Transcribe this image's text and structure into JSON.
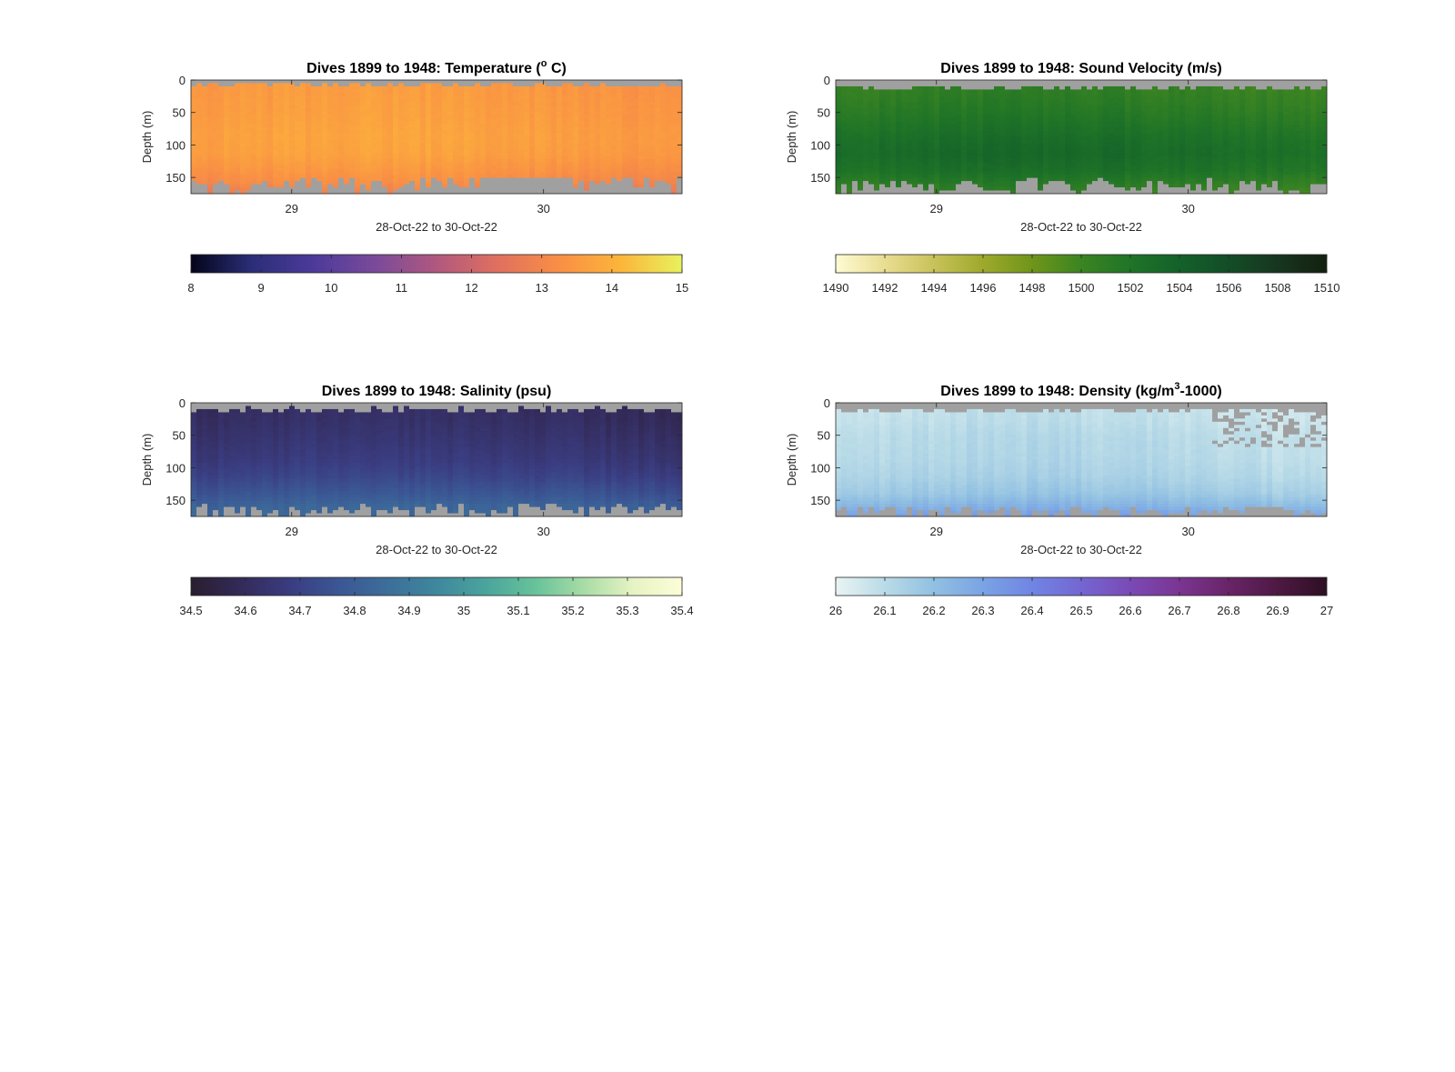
{
  "chart_data": [
    {
      "type": "heatmap",
      "title_main": "Dives 1899 to 1948: Temperature (",
      "title_sup": "o",
      "title_end": " C)",
      "xlabel": "28-Oct-22 to 30-Oct-22",
      "ylabel": "Depth (m)",
      "x_ticks": [
        "29",
        "30"
      ],
      "x_tick_values": [
        29,
        30
      ],
      "xlim": [
        28.6,
        30.55
      ],
      "y_ticks": [
        "0",
        "50",
        "100",
        "150"
      ],
      "y_tick_values": [
        0,
        50,
        100,
        150
      ],
      "ylim": [
        0,
        175
      ],
      "colorbar": {
        "ticks": [
          "8",
          "9",
          "10",
          "11",
          "12",
          "13",
          "14",
          "15"
        ],
        "range": [
          8,
          15
        ],
        "stops": [
          "#03051a",
          "#2b2e78",
          "#4c3a9a",
          "#7a4a9a",
          "#b0587f",
          "#e0705f",
          "#f98f45",
          "#fcb53a",
          "#e8f25c"
        ]
      },
      "missing_color": "#a0a0a0",
      "profile": {
        "base": [
          13.4,
          13.45,
          13.5,
          13.6,
          13.55,
          13.3,
          13.1,
          12.7
        ],
        "depth_fracs": [
          0.0,
          0.15,
          0.3,
          0.5,
          0.65,
          0.8,
          0.9,
          1.0
        ]
      },
      "surface_missing_m": [
        5,
        10
      ],
      "bottom_missing_m": [
        150,
        175
      ]
    },
    {
      "type": "heatmap",
      "title_main": "Dives 1899 to 1948: Sound Velocity (m/s)",
      "title_sup": "",
      "title_end": "",
      "xlabel": "28-Oct-22 to 30-Oct-22",
      "ylabel": "Depth (m)",
      "x_ticks": [
        "29",
        "30"
      ],
      "x_tick_values": [
        29,
        30
      ],
      "xlim": [
        28.6,
        30.55
      ],
      "y_ticks": [
        "0",
        "50",
        "100",
        "150"
      ],
      "y_tick_values": [
        0,
        50,
        100,
        150
      ],
      "ylim": [
        0,
        175
      ],
      "colorbar": {
        "ticks": [
          "1490",
          "1492",
          "1494",
          "1496",
          "1498",
          "1500",
          "1502",
          "1504",
          "1506",
          "1508",
          "1510"
        ],
        "range": [
          1490,
          1510
        ],
        "stops": [
          "#fefbd4",
          "#e9dd92",
          "#c8c25a",
          "#9ea92c",
          "#6f951a",
          "#3b8422",
          "#1f7427",
          "#14612a",
          "#134d27",
          "#17361f",
          "#13200f"
        ]
      },
      "missing_color": "#a0a0a0",
      "profile": {
        "base": [
          1500.2,
          1500.6,
          1501.2,
          1502.3,
          1502.8,
          1502.1,
          1501.0,
          1500.1
        ],
        "depth_fracs": [
          0.0,
          0.15,
          0.3,
          0.5,
          0.65,
          0.8,
          0.9,
          1.0
        ]
      },
      "surface_missing_m": [
        8,
        16
      ],
      "bottom_missing_m": [
        152,
        176
      ]
    },
    {
      "type": "heatmap",
      "title_main": "Dives 1899 to 1948: Salinity (psu)",
      "title_sup": "",
      "title_end": "",
      "xlabel": "28-Oct-22 to 30-Oct-22",
      "ylabel": "Depth (m)",
      "x_ticks": [
        "29",
        "30"
      ],
      "x_tick_values": [
        29,
        30
      ],
      "xlim": [
        28.6,
        30.55
      ],
      "y_ticks": [
        "0",
        "50",
        "100",
        "150"
      ],
      "y_tick_values": [
        0,
        50,
        100,
        150
      ],
      "ylim": [
        0,
        175
      ],
      "colorbar": {
        "ticks": [
          "34.5",
          "34.6",
          "34.7",
          "34.8",
          "34.9",
          "35",
          "35.1",
          "35.2",
          "35.3",
          "35.4"
        ],
        "range": [
          34.5,
          35.4
        ],
        "stops": [
          "#291e2e",
          "#332a58",
          "#3a3c80",
          "#3b5694",
          "#3c6e9a",
          "#3f879d",
          "#4aa49c",
          "#67c29a",
          "#a8dca5",
          "#e6f3c3",
          "#fdfdd8"
        ]
      },
      "missing_color": "#a0a0a0",
      "profile": {
        "base": [
          34.6,
          34.61,
          34.63,
          34.66,
          34.7,
          34.76,
          34.81,
          34.83
        ],
        "depth_fracs": [
          0.0,
          0.15,
          0.3,
          0.5,
          0.65,
          0.8,
          0.9,
          1.0
        ]
      },
      "surface_missing_m": [
        5,
        16
      ],
      "bottom_missing_m": [
        155,
        176
      ]
    },
    {
      "type": "heatmap",
      "title_main": "Dives 1899 to 1948: Density (kg/m",
      "title_sup": "3",
      "title_end": "-1000)",
      "xlabel": "28-Oct-22 to 30-Oct-22",
      "ylabel": "Depth (m)",
      "x_ticks": [
        "29",
        "30"
      ],
      "x_tick_values": [
        29,
        30
      ],
      "xlim": [
        28.6,
        30.55
      ],
      "y_ticks": [
        "0",
        "50",
        "100",
        "150"
      ],
      "y_tick_values": [
        0,
        50,
        100,
        150
      ],
      "ylim": [
        0,
        175
      ],
      "colorbar": {
        "ticks": [
          "26",
          "26.1",
          "26.2",
          "26.3",
          "26.4",
          "26.5",
          "26.6",
          "26.7",
          "26.8",
          "26.9",
          "27"
        ],
        "range": [
          26,
          27
        ],
        "stops": [
          "#e9f4f4",
          "#b9dbe7",
          "#91c0e2",
          "#7aa3e4",
          "#7085e3",
          "#7466d2",
          "#7a4ab5",
          "#7a3592",
          "#692468",
          "#4e1943",
          "#2d0f23"
        ]
      },
      "missing_color": "#a0a0a0",
      "profile": {
        "base": [
          26.06,
          26.07,
          26.09,
          26.1,
          26.12,
          26.16,
          26.22,
          26.3
        ],
        "depth_fracs": [
          0.0,
          0.15,
          0.3,
          0.5,
          0.65,
          0.8,
          0.9,
          1.0
        ]
      },
      "surface_missing_m": [
        8,
        16
      ],
      "bottom_missing_m": [
        158,
        176
      ]
    }
  ]
}
